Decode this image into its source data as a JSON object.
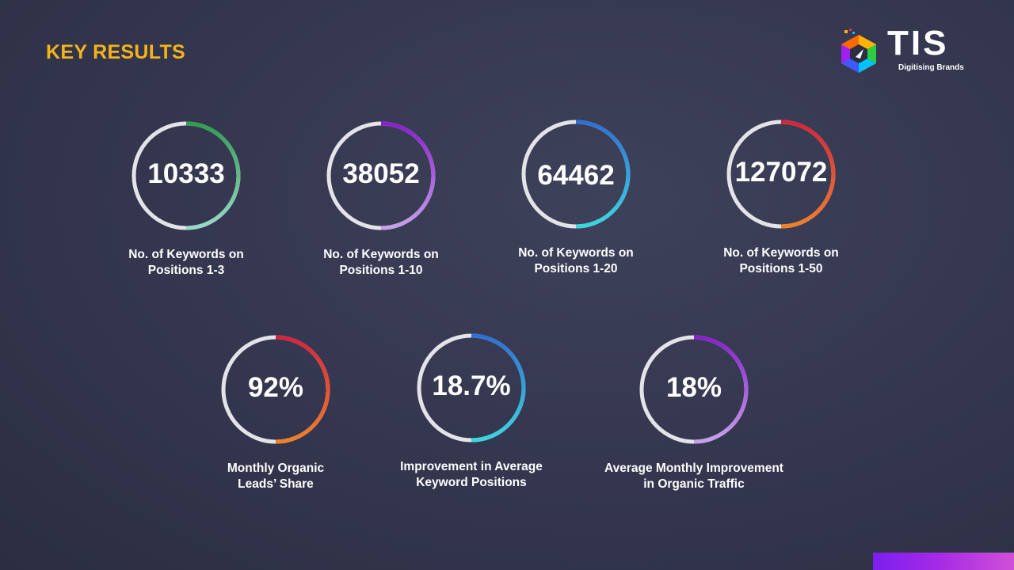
{
  "title": "KEY RESULTS",
  "logo": {
    "name": "TIS",
    "tagline": "Digitising Brands"
  },
  "stats": [
    {
      "value": "10333",
      "label": "No. of Keywords on\nPositions 1-3",
      "ring_colors": [
        "#2f9e4e",
        "#9ad9c8"
      ]
    },
    {
      "value": "38052",
      "label": "No. of Keywords on\nPositions 1-10",
      "ring_colors": [
        "#8a1fd0",
        "#c7a0ea"
      ]
    },
    {
      "value": "64462",
      "label": "No. of Keywords on\nPositions 1-20",
      "ring_colors": [
        "#2f6fd6",
        "#3ad6e0"
      ]
    },
    {
      "value": "127072",
      "label": "No. of Keywords on\nPositions 1-50",
      "ring_colors": [
        "#d8233a",
        "#f0802b"
      ]
    },
    {
      "value": "92%",
      "label": "Monthly Organic\nLeads’ Share",
      "ring_colors": [
        "#d8233a",
        "#f0802b"
      ]
    },
    {
      "value": "18.7%",
      "label": "Improvement in Average\nKeyword Positions",
      "ring_colors": [
        "#2f6fd6",
        "#3ad6e0"
      ]
    },
    {
      "value": "18%",
      "label": "Average Monthly Improvement\nin Organic Traffic",
      "ring_colors": [
        "#8a1fd0",
        "#c7a0ea"
      ]
    }
  ],
  "colors": {
    "title": "#f5b21b",
    "ring_track": "#e4e4e8",
    "corner_bar": "#9b2be8"
  }
}
